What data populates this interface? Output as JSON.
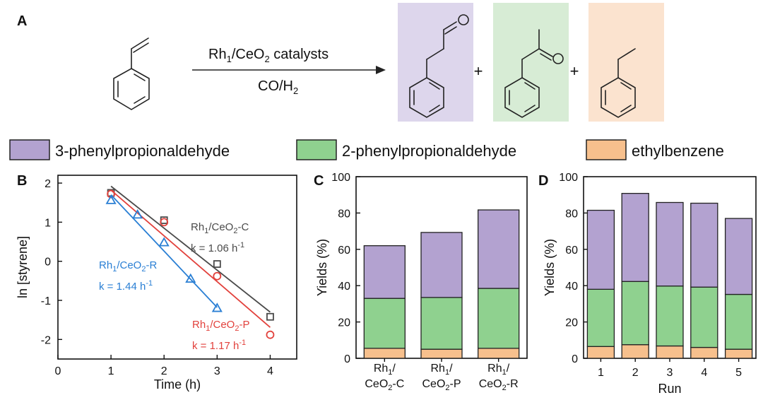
{
  "scheme": {
    "panel_label": "A",
    "reagent_main": "Rh",
    "reagent_sub": "1",
    "reagent_mid": "/CeO",
    "reagent_sub2": "2",
    "reagent_tail": " catalysts",
    "conditions_main": "CO/H",
    "conditions_sub": "2",
    "plus": "+",
    "product_colors": [
      "#ddd6ec",
      "#d7ecd5",
      "#fbe3cf"
    ]
  },
  "legend": {
    "items": [
      {
        "label": "3-phenylpropionaldehyde",
        "color": "#b3a2d0"
      },
      {
        "label": "2-phenylpropionaldehyde",
        "color": "#8fd18f"
      },
      {
        "label": "ethylbenzene",
        "color": "#f7c08d"
      }
    ]
  },
  "chart_data": [
    {
      "panel": "B",
      "type": "scatter",
      "xlabel": "Time (h)",
      "ylabel": "ln [styrene]",
      "xlim": [
        0,
        4.5
      ],
      "ylim": [
        -2.5,
        2.2
      ],
      "xticks": [
        0,
        1,
        2,
        3,
        4
      ],
      "yticks": [
        -2,
        -1,
        0,
        1,
        2
      ],
      "series": [
        {
          "name": "Rh1/CeO2-C",
          "marker": "square",
          "color": "#4a4a4a",
          "x": [
            1,
            2,
            3,
            4
          ],
          "y": [
            1.75,
            1.05,
            -0.07,
            -1.42
          ],
          "fit_x": [
            1,
            4
          ],
          "fit_y": [
            1.92,
            -1.3
          ],
          "label_main": "Rh",
          "label_sub": "1",
          "label_mid": "/CeO",
          "label_sub2": "2",
          "label_tail": "-C",
          "rate_main": "k = 1.06 h",
          "rate_sup": "-1"
        },
        {
          "name": "Rh1/CeO2-P",
          "marker": "circle",
          "color": "#e2413c",
          "x": [
            1,
            2,
            3,
            4
          ],
          "y": [
            1.72,
            1.0,
            -0.38,
            -1.88
          ],
          "fit_x": [
            1,
            4
          ],
          "fit_y": [
            1.82,
            -1.69
          ],
          "label_main": "Rh",
          "label_sub": "1",
          "label_mid": "/CeO",
          "label_sub2": "2",
          "label_tail": "-P",
          "rate_main": "k = 1.17 h",
          "rate_sup": "-1"
        },
        {
          "name": "Rh1/CeO2-R",
          "marker": "triangle",
          "color": "#2a7fd4",
          "x": [
            1,
            1.5,
            2,
            2.5,
            3
          ],
          "y": [
            1.56,
            1.19,
            0.48,
            -0.45,
            -1.2
          ],
          "fit_x": [
            1,
            3
          ],
          "fit_y": [
            1.7,
            -1.18
          ],
          "label_main": "Rh",
          "label_sub": "1",
          "label_mid": "/CeO",
          "label_sub2": "2",
          "label_tail": "-R",
          "rate_main": "k = 1.44 h",
          "rate_sup": "-1"
        }
      ]
    },
    {
      "panel": "C",
      "type": "bar",
      "stacked": true,
      "ylabel": "Yields (%)",
      "xlabel": "",
      "ylim": [
        0,
        100
      ],
      "yticks": [
        0,
        20,
        40,
        60,
        80,
        100
      ],
      "categories": [
        {
          "line1_main": "Rh",
          "line1_sub": "1",
          "line1_tail": "/",
          "line2_main": "CeO",
          "line2_sub": "2",
          "line2_tail": "-C"
        },
        {
          "line1_main": "Rh",
          "line1_sub": "1",
          "line1_tail": "/",
          "line2_main": "CeO",
          "line2_sub": "2",
          "line2_tail": "-P"
        },
        {
          "line1_main": "Rh",
          "line1_sub": "1",
          "line1_tail": "/",
          "line2_main": "CeO",
          "line2_sub": "2",
          "line2_tail": "-R"
        }
      ],
      "series": [
        {
          "name": "ethylbenzene",
          "values": [
            5.5,
            5,
            5.5
          ]
        },
        {
          "name": "2-phenylpropionaldehyde",
          "values": [
            27.5,
            28.5,
            33
          ]
        },
        {
          "name": "3-phenylpropionaldehyde",
          "values": [
            29,
            35.8,
            43.2
          ]
        }
      ]
    },
    {
      "panel": "D",
      "type": "bar",
      "stacked": true,
      "ylabel": "Yields (%)",
      "xlabel": "Run",
      "ylim": [
        0,
        100
      ],
      "yticks": [
        0,
        20,
        40,
        60,
        80,
        100
      ],
      "categories": [
        "1",
        "2",
        "3",
        "4",
        "5"
      ],
      "series": [
        {
          "name": "ethylbenzene",
          "values": [
            6.5,
            7.5,
            6.8,
            6,
            5
          ]
        },
        {
          "name": "2-phenylpropionaldehyde",
          "values": [
            31.5,
            34.8,
            33,
            33.2,
            30.2
          ]
        },
        {
          "name": "3-phenylpropionaldehyde",
          "values": [
            43.5,
            48.5,
            46,
            46.2,
            41.8
          ]
        }
      ]
    }
  ]
}
